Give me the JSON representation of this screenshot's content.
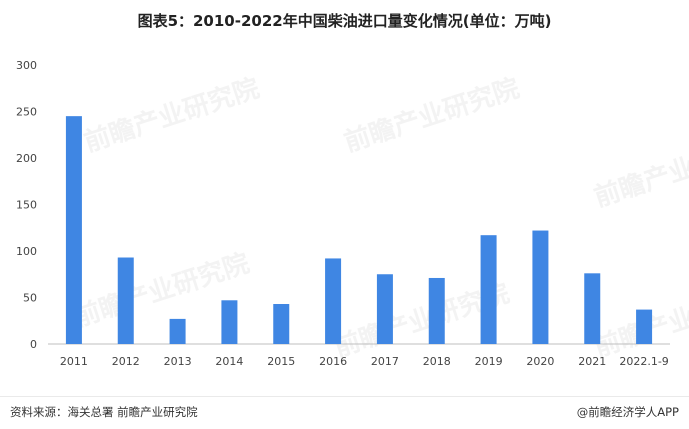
{
  "title": "图表5：2010-2022年中国柴油进口量变化情况(单位：万吨)",
  "source_text": "资料来源：海关总署 前瞻产业研究院",
  "brand_text": "@前瞻经济学人APP",
  "watermark_text": "前瞻产业研究院",
  "colors": {
    "bar": "#3f86e3",
    "axis": "#bfbfbf",
    "text": "#444444"
  },
  "chart_data": {
    "type": "bar",
    "categories": [
      "2011",
      "2012",
      "2013",
      "2014",
      "2015",
      "2016",
      "2017",
      "2018",
      "2019",
      "2020",
      "2021",
      "2022.1-9"
    ],
    "values": [
      245,
      93,
      27,
      47,
      43,
      92,
      75,
      71,
      117,
      122,
      76,
      37
    ],
    "title": "图表5：2010-2022年中国柴油进口量变化情况(单位：万吨)",
    "xlabel": "",
    "ylabel": "",
    "ylim": [
      0,
      300
    ],
    "yticks": [
      0,
      50,
      100,
      150,
      200,
      250,
      300
    ],
    "grid": false,
    "legend": "none"
  }
}
